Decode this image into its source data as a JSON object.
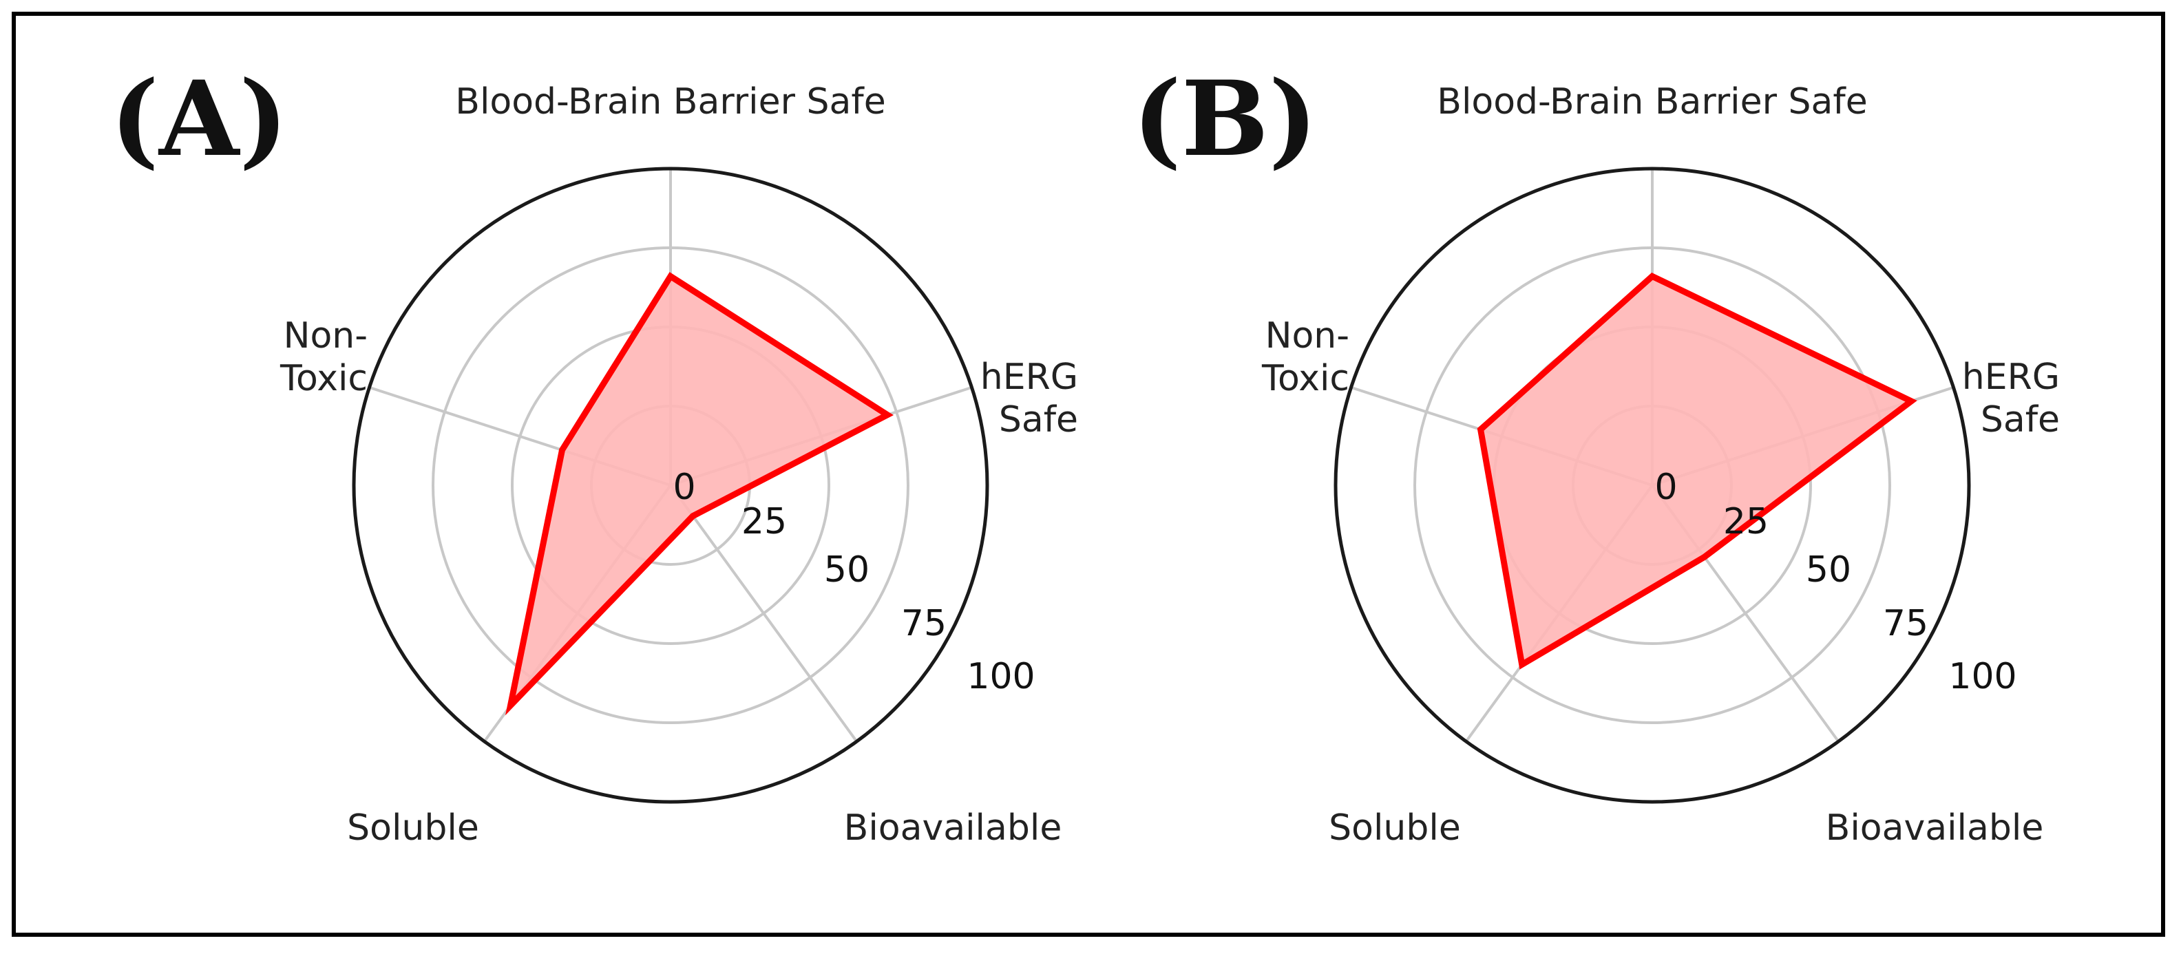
{
  "colors": {
    "line": "#ff0000",
    "fill": "#ffb6b6",
    "grid": "#c8c8c8",
    "frame": "#000000"
  },
  "chart_data": [
    {
      "type": "radar",
      "panel_label": "(A)",
      "axes": [
        "Blood-Brain Barrier Safe",
        "hERG Safe",
        "Bioavailable",
        "Soluble",
        "Non-Toxic"
      ],
      "axis_text": [
        [
          "Blood-Brain Barrier Safe"
        ],
        [
          "hERG",
          "Safe"
        ],
        [
          "Bioavailable"
        ],
        [
          "Soluble"
        ],
        [
          "Non-",
          "Toxic"
        ]
      ],
      "values": [
        66,
        72,
        12,
        86,
        36
      ],
      "rlim": [
        0,
        100
      ],
      "ticks": [
        0,
        25,
        50,
        75,
        100
      ],
      "tick_labels": [
        "0",
        "25",
        "50",
        "75",
        "100"
      ],
      "grid": true
    },
    {
      "type": "radar",
      "panel_label": "(B)",
      "axes": [
        "Blood-Brain Barrier Safe",
        "hERG Safe",
        "Bioavailable",
        "Soluble",
        "Non-Toxic"
      ],
      "axis_text": [
        [
          "Blood-Brain Barrier Safe"
        ],
        [
          "hERG",
          "Safe"
        ],
        [
          "Bioavailable"
        ],
        [
          "Soluble"
        ],
        [
          "Non-",
          "Toxic"
        ]
      ],
      "values": [
        66,
        86,
        28,
        70,
        57
      ],
      "rlim": [
        0,
        100
      ],
      "ticks": [
        0,
        25,
        50,
        75,
        100
      ],
      "tick_labels": [
        "0",
        "25",
        "50",
        "75",
        "100"
      ],
      "grid": true
    }
  ]
}
